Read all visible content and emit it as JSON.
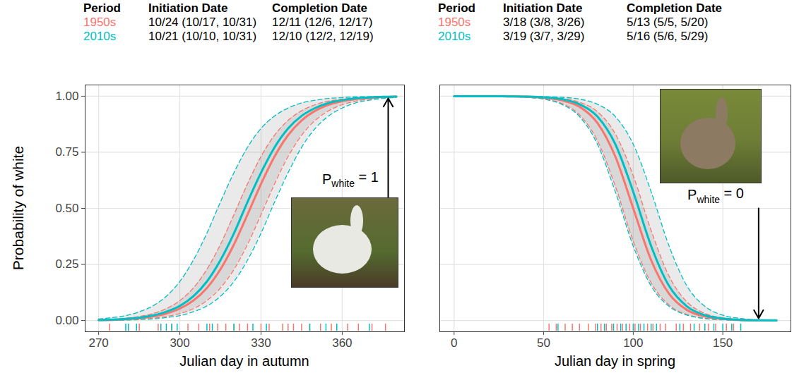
{
  "chart_data": [
    {
      "type": "line",
      "x_label": "Julian day in autumn",
      "y_label": "Probability of white",
      "xlim": [
        265,
        383
      ],
      "xticks": [
        270,
        300,
        330,
        360
      ],
      "ylim": [
        -0.05,
        1.05
      ],
      "yticks": [
        {
          "value": 0,
          "label": "0.00"
        },
        0.25,
        {
          "value": 0.5,
          "label": "0.50"
        },
        0.75,
        {
          "value": 1,
          "label": "1.00"
        }
      ],
      "grid": true,
      "table": {
        "columns": [
          "Period",
          "Initiation Date",
          "Completion Date"
        ],
        "rows": [
          [
            "1950s",
            "10/24 (10/17, 10/31)",
            "12/11 (12/6, 12/17)"
          ],
          [
            "2010s",
            "10/21 (10/10, 10/31)",
            "12/10 (12/2, 12/19)"
          ]
        ]
      },
      "x": [
        270,
        275,
        280,
        285,
        290,
        295,
        300,
        305,
        310,
        315,
        320,
        325,
        330,
        335,
        340,
        345,
        350,
        355,
        360,
        365,
        370,
        375,
        380
      ],
      "series": [
        {
          "name": "1950s",
          "color": "#F8766D",
          "values": [
            0.002,
            0.003,
            0.006,
            0.01,
            0.018,
            0.031,
            0.053,
            0.089,
            0.145,
            0.228,
            0.339,
            0.472,
            0.609,
            0.731,
            0.826,
            0.892,
            0.935,
            0.962,
            0.978,
            0.987,
            0.993,
            0.996,
            0.998
          ],
          "lower": [
            0.001,
            0.002,
            0.003,
            0.006,
            0.01,
            0.018,
            0.031,
            0.053,
            0.089,
            0.145,
            0.228,
            0.339,
            0.472,
            0.609,
            0.731,
            0.826,
            0.892,
            0.935,
            0.962,
            0.978,
            0.987,
            0.993,
            0.996
          ],
          "upper": [
            0.003,
            0.006,
            0.01,
            0.018,
            0.031,
            0.053,
            0.089,
            0.145,
            0.228,
            0.339,
            0.472,
            0.609,
            0.731,
            0.826,
            0.892,
            0.935,
            0.962,
            0.978,
            0.987,
            0.993,
            0.996,
            0.998,
            0.999
          ],
          "rug": [
            274,
            285,
            292,
            297,
            303,
            307,
            311,
            314,
            317,
            320,
            322,
            325,
            330,
            333,
            338,
            340,
            342,
            345,
            348,
            352,
            356,
            362,
            366,
            371,
            376
          ]
        },
        {
          "name": "2010s",
          "color": "#00BFC4",
          "values": [
            0.002,
            0.004,
            0.007,
            0.013,
            0.022,
            0.039,
            0.065,
            0.108,
            0.174,
            0.269,
            0.389,
            0.528,
            0.659,
            0.772,
            0.856,
            0.912,
            0.947,
            0.97,
            0.982,
            0.99,
            0.994,
            0.997,
            0.998
          ],
          "lower": [
            0.001,
            0.001,
            0.002,
            0.004,
            0.007,
            0.013,
            0.022,
            0.039,
            0.065,
            0.108,
            0.174,
            0.269,
            0.389,
            0.528,
            0.659,
            0.772,
            0.856,
            0.912,
            0.947,
            0.97,
            0.982,
            0.99,
            0.994
          ],
          "upper": [
            0.007,
            0.013,
            0.022,
            0.039,
            0.065,
            0.108,
            0.174,
            0.269,
            0.389,
            0.528,
            0.659,
            0.772,
            0.856,
            0.912,
            0.947,
            0.97,
            0.982,
            0.99,
            0.994,
            0.997,
            0.998,
            0.999,
            0.999
          ],
          "rug": [
            280,
            281,
            284,
            293,
            295,
            297,
            299,
            310,
            312,
            320,
            327,
            332,
            348,
            354,
            358,
            370
          ]
        }
      ],
      "annotations": [
        {
          "text": "P",
          "subscript": "white",
          "suffix": " = 1",
          "x": 363,
          "y": 0.63,
          "arrow_from": [
            377,
            0.55
          ],
          "arrow_to": [
            377,
            0.99
          ]
        }
      ]
    },
    {
      "type": "line",
      "x_label": "Julian day in spring",
      "xlim": [
        -8,
        188
      ],
      "xticks": [
        0,
        50,
        100,
        150
      ],
      "ylim": [
        -0.05,
        1.05
      ],
      "yticks": [
        0,
        0.25,
        0.5,
        0.75,
        1
      ],
      "grid": true,
      "tick_labels": "x",
      "table": {
        "columns": [
          "Period",
          "Initiation Date",
          "Completion Date"
        ],
        "rows": [
          [
            "1950s",
            "3/18 (3/8, 3/26)",
            "5/13 (5/5, 5/20)"
          ],
          [
            "2010s",
            "3/19 (3/7, 3/29)",
            "5/16 (5/6, 5/29)"
          ]
        ]
      },
      "x": [
        0,
        10,
        20,
        30,
        40,
        50,
        60,
        70,
        80,
        90,
        100,
        110,
        120,
        130,
        140,
        150,
        160,
        170,
        180
      ],
      "series": [
        {
          "name": "1950s",
          "color": "#F8766D",
          "values": [
            1,
            1,
            1,
            0.999,
            0.998,
            0.993,
            0.982,
            0.953,
            0.881,
            0.731,
            0.5,
            0.269,
            0.119,
            0.047,
            0.018,
            0.007,
            0.002,
            0.001,
            0
          ],
          "lower": [
            1,
            1,
            0.999,
            0.998,
            0.995,
            0.988,
            0.968,
            0.917,
            0.802,
            0.599,
            0.354,
            0.168,
            0.069,
            0.027,
            0.01,
            0.004,
            0.001,
            0,
            0
          ],
          "upper": [
            1,
            1,
            1,
            0.999,
            0.999,
            0.996,
            0.99,
            0.973,
            0.931,
            0.832,
            0.646,
            0.401,
            0.198,
            0.083,
            0.032,
            0.012,
            0.005,
            0.002,
            0.001
          ],
          "rug": [
            53,
            57,
            62,
            66,
            70,
            75,
            79,
            82,
            85,
            88,
            91,
            94,
            98,
            101,
            104,
            108,
            111,
            115,
            118,
            124,
            128,
            132,
            137,
            142,
            146,
            152,
            156
          ]
        },
        {
          "name": "2010s",
          "color": "#00BFC4",
          "values": [
            1,
            1,
            1,
            0.999,
            0.998,
            0.995,
            0.987,
            0.964,
            0.909,
            0.786,
            0.574,
            0.332,
            0.154,
            0.063,
            0.024,
            0.009,
            0.003,
            0.001,
            0
          ],
          "lower": [
            1,
            1,
            0.999,
            0.998,
            0.995,
            0.987,
            0.964,
            0.909,
            0.786,
            0.574,
            0.332,
            0.154,
            0.063,
            0.024,
            0.009,
            0.003,
            0.001,
            0,
            0
          ],
          "upper": [
            1,
            1,
            1,
            1,
            0.999,
            0.998,
            0.995,
            0.987,
            0.964,
            0.909,
            0.786,
            0.574,
            0.332,
            0.154,
            0.063,
            0.024,
            0.009,
            0.003,
            0.001
          ],
          "rug": [
            58,
            80,
            84,
            89,
            93,
            96,
            100,
            103,
            106,
            110,
            113,
            126,
            134,
            140,
            145,
            150,
            155,
            160
          ]
        }
      ],
      "annotations": [
        {
          "text": "P",
          "subscript": "white",
          "suffix": " = 0",
          "x": 146,
          "y": 0.56,
          "arrow_from": [
            170,
            0.5
          ],
          "arrow_to": [
            170,
            0.01
          ]
        }
      ]
    }
  ]
}
